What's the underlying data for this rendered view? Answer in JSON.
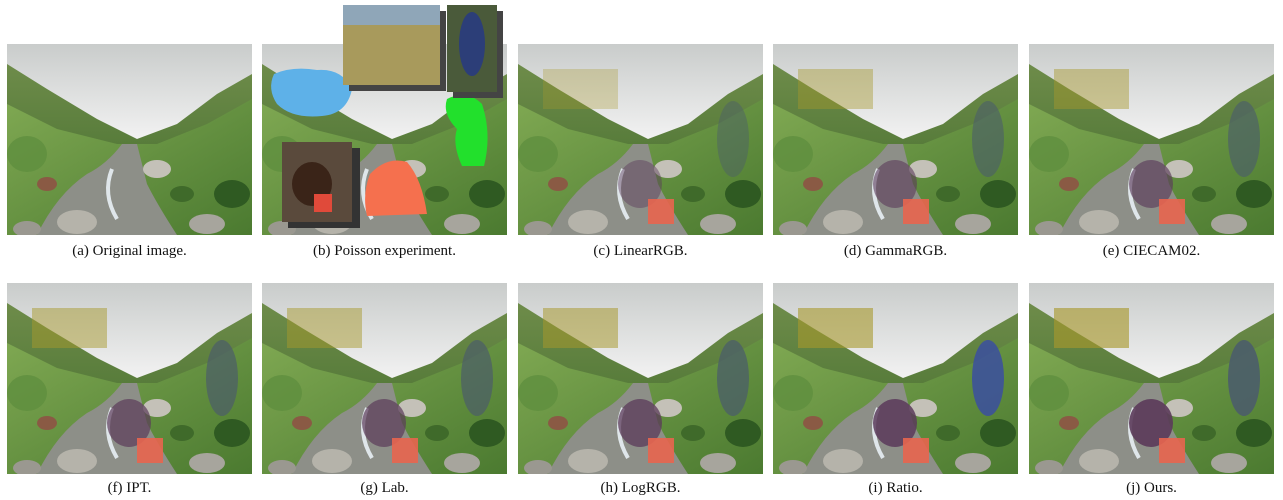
{
  "captions": [
    "(a) Original image.",
    "(b) Poisson experiment.",
    "(c) LinearRGB.",
    "(d) GammaRGB.",
    "(e) CIECAM02.",
    "(f) IPT.",
    "(g) Lab.",
    "(h) LogRGB.",
    "(i) Ratio.",
    "(j) Ours."
  ]
}
